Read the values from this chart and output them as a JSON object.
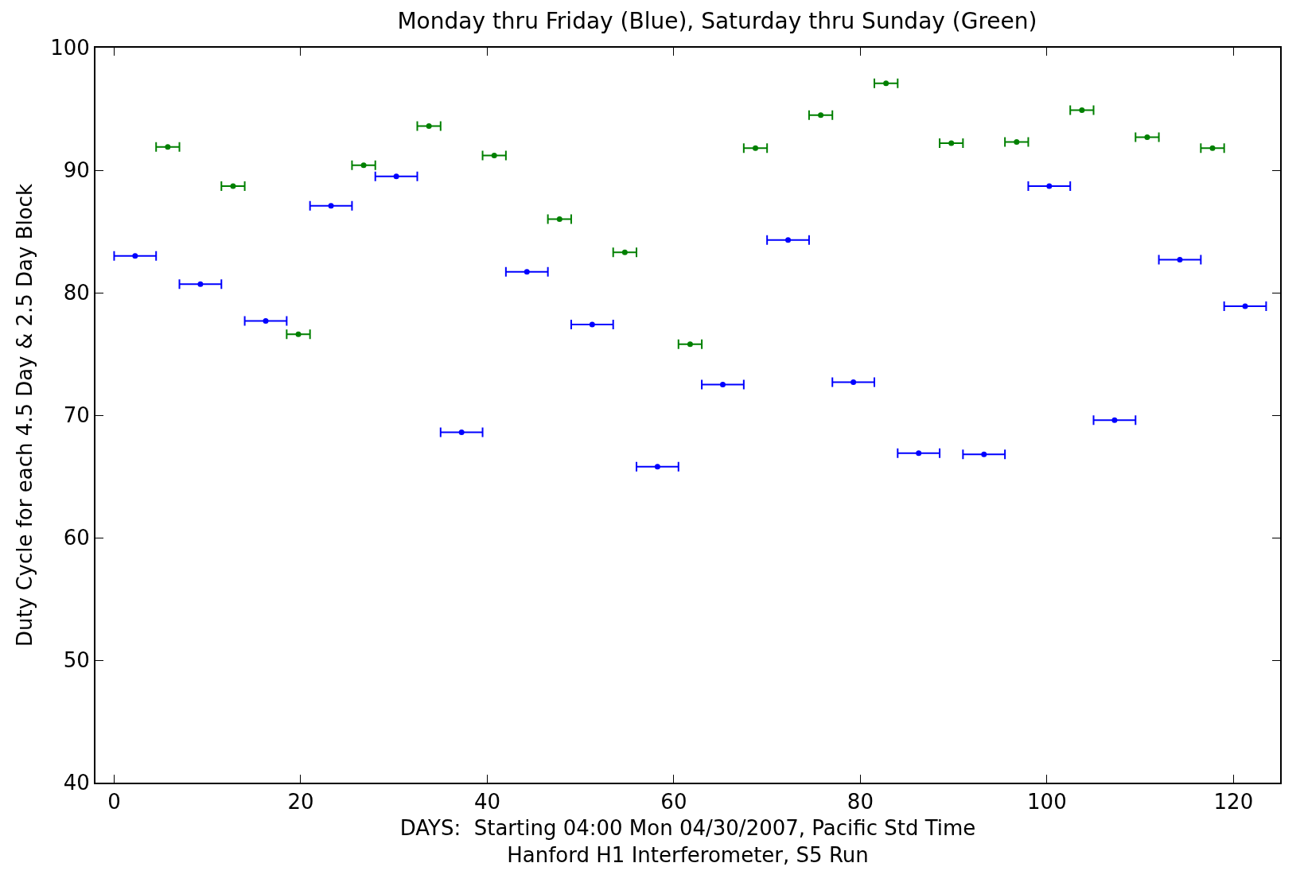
{
  "chart_data": {
    "type": "scatter",
    "title": "Monday thru Friday (Blue), Saturday thru Sunday (Green)",
    "xlabel": "DAYS:  Starting 04:00 Mon 04/30/2007, Pacific Std Time\nHanford H1 Interferometer, S5 Run",
    "ylabel": "Duty Cycle for each 4.5 Day & 2.5 Day Block",
    "xlim": [
      -2,
      125
    ],
    "ylim": [
      40,
      100
    ],
    "xticks": [
      0,
      20,
      40,
      60,
      80,
      100,
      120
    ],
    "yticks": [
      40,
      50,
      60,
      70,
      80,
      90,
      100
    ],
    "marker": "circle",
    "series": [
      {
        "color": "#0000ff",
        "x": [
          2.25,
          9.25,
          16.25,
          23.25,
          30.25,
          37.25,
          44.25,
          51.25,
          58.25,
          65.25,
          72.25,
          79.25,
          86.25,
          93.25,
          100.25,
          107.25,
          114.25,
          121.25
        ],
        "values": [
          83.0,
          80.7,
          77.7,
          87.1,
          89.5,
          68.6,
          81.7,
          77.4,
          65.8,
          72.5,
          84.3,
          72.7,
          66.9,
          66.8,
          88.7,
          69.6,
          82.7,
          78.9
        ],
        "xerrors": [
          2.25,
          2.25,
          2.25,
          2.25,
          2.25,
          2.25,
          2.25,
          2.25,
          2.25,
          2.25,
          2.25,
          2.25,
          2.25,
          2.25,
          2.25,
          2.25,
          2.25,
          2.25
        ]
      },
      {
        "color": "#008000",
        "x": [
          5.75,
          12.75,
          19.75,
          26.75,
          33.75,
          40.75,
          47.75,
          54.75,
          61.75,
          68.75,
          75.75,
          82.75,
          89.75,
          96.75,
          103.75,
          110.75,
          117.75
        ],
        "values": [
          91.9,
          88.7,
          76.6,
          90.4,
          93.6,
          91.2,
          86.0,
          83.3,
          75.8,
          91.8,
          94.5,
          97.1,
          92.2,
          92.3,
          94.9,
          92.7,
          91.8
        ],
        "xerrors": [
          1.25,
          1.25,
          1.25,
          1.25,
          1.25,
          1.25,
          1.25,
          1.25,
          1.25,
          1.25,
          1.25,
          1.25,
          1.25,
          1.25,
          1.25,
          1.25,
          1.25
        ]
      }
    ]
  }
}
